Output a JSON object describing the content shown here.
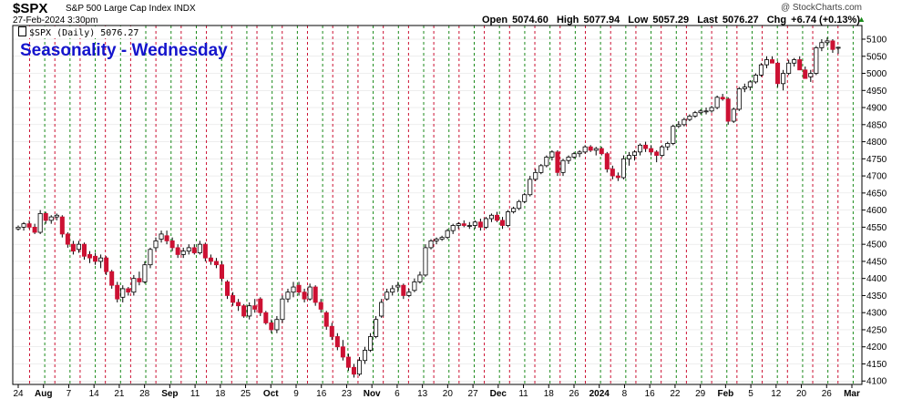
{
  "header": {
    "symbol": "$SPX",
    "name": "S&P 500 Large Cap Index INDX",
    "datetime": "27-Feb-2024 3:30pm",
    "brand": "@ StockCharts.com",
    "legend": "$SPX (Daily) 5076.27",
    "ohlc": {
      "open_label": "Open",
      "open": "5074.60",
      "high_label": "High",
      "high": "5077.94",
      "low_label": "Low",
      "low": "5057.29",
      "last_label": "Last",
      "last": "5076.27",
      "chg_label": "Chg",
      "chg": "+6.74 (+0.13%)",
      "up_glyph": "▲"
    }
  },
  "colors": {
    "up": "#ffffff",
    "down": "#cc1133",
    "outline": "#000000",
    "wednesday_line": "#cc1133",
    "monday_line": "#1a8a1a",
    "title": "#1414cc",
    "grid": "#dddddd"
  },
  "chart_data": {
    "type": "candlestick",
    "title": "Seasonality - Wednesday",
    "ylim": [
      4090,
      5140
    ],
    "y_ticks": [
      4100,
      4150,
      4200,
      4250,
      4300,
      4350,
      4400,
      4450,
      4500,
      4550,
      4600,
      4650,
      4700,
      4750,
      4800,
      4850,
      4900,
      4950,
      5000,
      5050,
      5100
    ],
    "x_labels": [
      "24",
      "Aug",
      "7",
      "14",
      "21",
      "28",
      "Sep",
      "11",
      "18",
      "25",
      "Oct",
      "9",
      "16",
      "23",
      "Nov",
      "6",
      "13",
      "20",
      "27",
      "Dec",
      "11",
      "18",
      "26",
      "2024",
      "8",
      "16",
      "22",
      "29",
      "Feb",
      "5",
      "12",
      "20",
      "26",
      "Mar"
    ],
    "bold_labels": [
      "Aug",
      "Sep",
      "Oct",
      "Nov",
      "Dec",
      "2024",
      "Feb",
      "Mar"
    ],
    "vertical_lines": "red dashed on Wednesdays, green dashed on Mondays",
    "candles": [
      [
        4545,
        4555,
        4540,
        4550
      ],
      [
        4550,
        4565,
        4540,
        4560
      ],
      [
        4560,
        4570,
        4545,
        4550
      ],
      [
        4550,
        4560,
        4530,
        4535
      ],
      [
        4535,
        4600,
        4530,
        4590
      ],
      [
        4590,
        4595,
        4560,
        4570
      ],
      [
        4570,
        4585,
        4560,
        4580
      ],
      [
        4580,
        4590,
        4570,
        4585
      ],
      [
        4580,
        4585,
        4520,
        4530
      ],
      [
        4530,
        4535,
        4490,
        4500
      ],
      [
        4500,
        4510,
        4470,
        4480
      ],
      [
        4485,
        4510,
        4475,
        4500
      ],
      [
        4500,
        4505,
        4455,
        4465
      ],
      [
        4470,
        4480,
        4445,
        4460
      ],
      [
        4465,
        4475,
        4440,
        4450
      ],
      [
        4450,
        4470,
        4430,
        4460
      ],
      [
        4460,
        4465,
        4410,
        4420
      ],
      [
        4420,
        4425,
        4370,
        4380
      ],
      [
        4380,
        4390,
        4330,
        4340
      ],
      [
        4345,
        4380,
        4330,
        4370
      ],
      [
        4370,
        4375,
        4350,
        4360
      ],
      [
        4360,
        4410,
        4350,
        4400
      ],
      [
        4400,
        4420,
        4380,
        4390
      ],
      [
        4390,
        4450,
        4385,
        4440
      ],
      [
        4440,
        4490,
        4430,
        4485
      ],
      [
        4490,
        4520,
        4480,
        4510
      ],
      [
        4515,
        4540,
        4505,
        4530
      ],
      [
        4525,
        4540,
        4500,
        4510
      ],
      [
        4510,
        4520,
        4480,
        4490
      ],
      [
        4490,
        4500,
        4460,
        4470
      ],
      [
        4470,
        4490,
        4460,
        4480
      ],
      [
        4480,
        4500,
        4470,
        4490
      ],
      [
        4490,
        4500,
        4470,
        4475
      ],
      [
        4475,
        4510,
        4470,
        4500
      ],
      [
        4500,
        4505,
        4450,
        4460
      ],
      [
        4460,
        4470,
        4440,
        4450
      ],
      [
        4450,
        4460,
        4430,
        4440
      ],
      [
        4440,
        4450,
        4390,
        4400
      ],
      [
        4390,
        4395,
        4340,
        4350
      ],
      [
        4350,
        4360,
        4320,
        4330
      ],
      [
        4330,
        4340,
        4305,
        4320
      ],
      [
        4320,
        4325,
        4285,
        4290
      ],
      [
        4290,
        4330,
        4280,
        4320
      ],
      [
        4320,
        4340,
        4300,
        4310
      ],
      [
        4340,
        4345,
        4290,
        4300
      ],
      [
        4300,
        4305,
        4265,
        4270
      ],
      [
        4270,
        4280,
        4240,
        4250
      ],
      [
        4250,
        4290,
        4240,
        4280
      ],
      [
        4280,
        4350,
        4270,
        4340
      ],
      [
        4340,
        4370,
        4330,
        4360
      ],
      [
        4360,
        4390,
        4345,
        4375
      ],
      [
        4380,
        4390,
        4350,
        4360
      ],
      [
        4360,
        4370,
        4330,
        4340
      ],
      [
        4340,
        4385,
        4335,
        4375
      ],
      [
        4375,
        4380,
        4320,
        4330
      ],
      [
        4330,
        4340,
        4300,
        4310
      ],
      [
        4300,
        4305,
        4250,
        4260
      ],
      [
        4260,
        4270,
        4220,
        4230
      ],
      [
        4230,
        4240,
        4190,
        4200
      ],
      [
        4200,
        4220,
        4160,
        4170
      ],
      [
        4170,
        4180,
        4130,
        4140
      ],
      [
        4140,
        4150,
        4110,
        4120
      ],
      [
        4120,
        4170,
        4115,
        4160
      ],
      [
        4160,
        4200,
        4150,
        4190
      ],
      [
        4190,
        4240,
        4185,
        4230
      ],
      [
        4230,
        4290,
        4225,
        4280
      ],
      [
        4290,
        4340,
        4285,
        4330
      ],
      [
        4340,
        4370,
        4335,
        4360
      ],
      [
        4360,
        4380,
        4350,
        4370
      ],
      [
        4375,
        4390,
        4360,
        4380
      ],
      [
        4380,
        4385,
        4340,
        4350
      ],
      [
        4350,
        4370,
        4345,
        4360
      ],
      [
        4365,
        4400,
        4360,
        4390
      ],
      [
        4390,
        4420,
        4385,
        4410
      ],
      [
        4410,
        4500,
        4405,
        4490
      ],
      [
        4490,
        4515,
        4485,
        4510
      ],
      [
        4510,
        4520,
        4500,
        4515
      ],
      [
        4515,
        4525,
        4510,
        4520
      ],
      [
        4520,
        4545,
        4515,
        4540
      ],
      [
        4540,
        4560,
        4530,
        4555
      ],
      [
        4555,
        4565,
        4545,
        4560
      ],
      [
        4560,
        4570,
        4550,
        4555
      ],
      [
        4555,
        4565,
        4545,
        4555
      ],
      [
        4555,
        4570,
        4545,
        4565
      ],
      [
        4565,
        4575,
        4540,
        4550
      ],
      [
        4550,
        4580,
        4545,
        4575
      ],
      [
        4575,
        4590,
        4565,
        4585
      ],
      [
        4585,
        4595,
        4565,
        4570
      ],
      [
        4570,
        4580,
        4545,
        4555
      ],
      [
        4555,
        4600,
        4550,
        4595
      ],
      [
        4595,
        4610,
        4590,
        4605
      ],
      [
        4605,
        4630,
        4600,
        4625
      ],
      [
        4625,
        4650,
        4620,
        4645
      ],
      [
        4645,
        4700,
        4640,
        4690
      ],
      [
        4690,
        4720,
        4685,
        4710
      ],
      [
        4710,
        4735,
        4705,
        4730
      ],
      [
        4730,
        4760,
        4725,
        4755
      ],
      [
        4755,
        4775,
        4745,
        4770
      ],
      [
        4770,
        4775,
        4700,
        4710
      ],
      [
        4710,
        4750,
        4700,
        4745
      ],
      [
        4745,
        4760,
        4735,
        4755
      ],
      [
        4755,
        4770,
        4750,
        4765
      ],
      [
        4765,
        4775,
        4755,
        4770
      ],
      [
        4770,
        4790,
        4765,
        4785
      ],
      [
        4785,
        4790,
        4770,
        4775
      ],
      [
        4775,
        4785,
        4760,
        4780
      ],
      [
        4780,
        4785,
        4760,
        4765
      ],
      [
        4765,
        4770,
        4710,
        4720
      ],
      [
        4720,
        4730,
        4690,
        4700
      ],
      [
        4700,
        4710,
        4685,
        4695
      ],
      [
        4695,
        4760,
        4690,
        4750
      ],
      [
        4750,
        4770,
        4730,
        4760
      ],
      [
        4760,
        4775,
        4745,
        4770
      ],
      [
        4770,
        4795,
        4760,
        4790
      ],
      [
        4790,
        4800,
        4770,
        4780
      ],
      [
        4780,
        4790,
        4760,
        4770
      ],
      [
        4770,
        4775,
        4740,
        4760
      ],
      [
        4760,
        4790,
        4755,
        4785
      ],
      [
        4785,
        4800,
        4775,
        4795
      ],
      [
        4795,
        4850,
        4790,
        4845
      ],
      [
        4845,
        4860,
        4840,
        4850
      ],
      [
        4850,
        4870,
        4845,
        4865
      ],
      [
        4865,
        4880,
        4860,
        4875
      ],
      [
        4875,
        4890,
        4870,
        4885
      ],
      [
        4885,
        4895,
        4880,
        4890
      ],
      [
        4890,
        4900,
        4880,
        4890
      ],
      [
        4890,
        4905,
        4885,
        4900
      ],
      [
        4900,
        4935,
        4895,
        4930
      ],
      [
        4930,
        4940,
        4920,
        4925
      ],
      [
        4925,
        4930,
        4850,
        4860
      ],
      [
        4860,
        4900,
        4855,
        4895
      ],
      [
        4895,
        4960,
        4890,
        4955
      ],
      [
        4955,
        4970,
        4945,
        4960
      ],
      [
        4960,
        4980,
        4950,
        4975
      ],
      [
        4975,
        5000,
        4970,
        4995
      ],
      [
        4995,
        5030,
        4990,
        5025
      ],
      [
        5025,
        5050,
        5015,
        5040
      ],
      [
        5040,
        5050,
        5030,
        5030
      ],
      [
        5030,
        5035,
        4960,
        4970
      ],
      [
        4970,
        5010,
        4950,
        5000
      ],
      [
        5000,
        5040,
        4995,
        5030
      ],
      [
        5030,
        5045,
        5020,
        5040
      ],
      [
        5040,
        5050,
        5010,
        5010
      ],
      [
        5010,
        5020,
        4990,
        4985
      ],
      [
        4990,
        5010,
        4975,
        5000
      ],
      [
        5000,
        5080,
        4995,
        5075
      ],
      [
        5075,
        5100,
        5065,
        5090
      ],
      [
        5090,
        5105,
        5080,
        5095
      ],
      [
        5095,
        5100,
        5060,
        5070
      ],
      [
        5074.6,
        5077.94,
        5057.29,
        5076.27
      ]
    ]
  }
}
